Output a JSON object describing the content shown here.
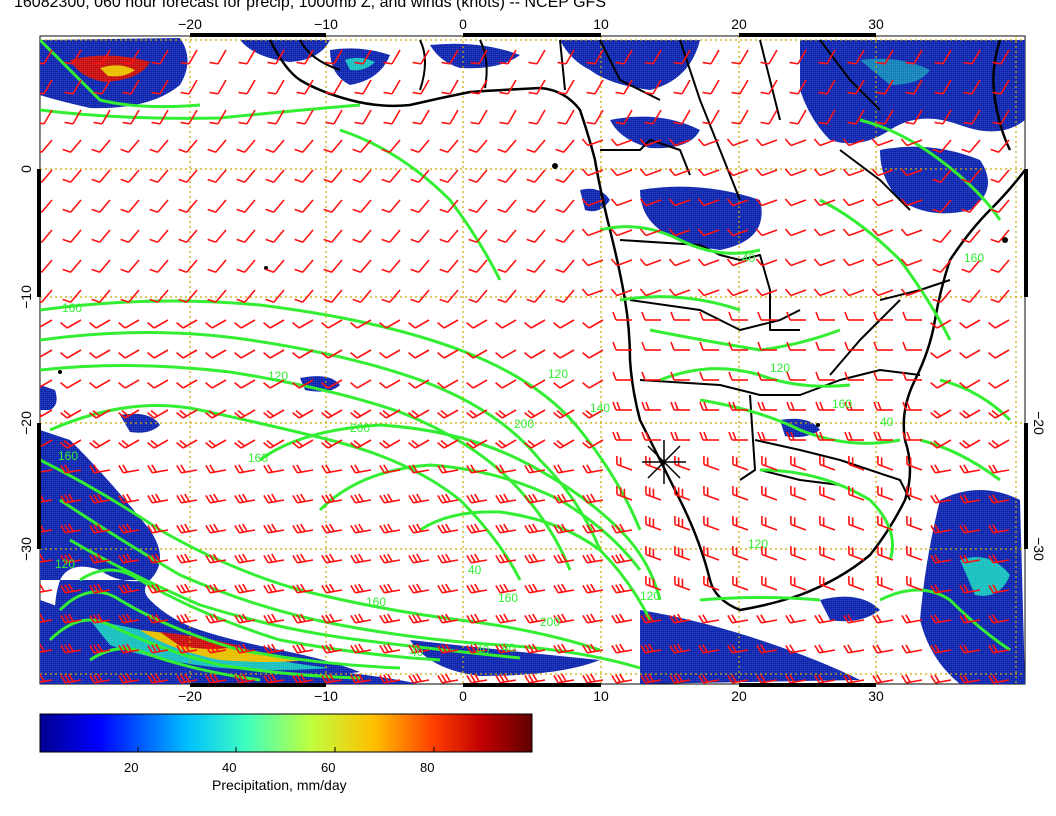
{
  "title": "16082300, 060 hour forecast for precip, 1000mb Z, and winds (knots) -- NCEP GFS",
  "map": {
    "lon_ticks": [
      "−20",
      "−10",
      "0",
      "10",
      "20",
      "30"
    ],
    "lat_ticks_left": [
      "0",
      "−10",
      "−20",
      "−30"
    ],
    "lat_ticks_right": [
      "−20",
      "−30"
    ],
    "contour_labels": [
      "160",
      "120",
      "160",
      "200",
      "120",
      "160",
      "140",
      "120",
      "200",
      "160",
      "40",
      "120",
      "160",
      "200",
      "40",
      "40",
      "40",
      "120",
      "160",
      "40",
      "40",
      "120",
      "160"
    ],
    "colors": {
      "coast": "#000000",
      "contour": "#33ee33",
      "wind_barb": "#ff1111",
      "grid": "#ccaa00",
      "precip_low": "#000080",
      "precip_mid": "#18c0c0",
      "precip_high": "#c80000"
    },
    "wind_barb_icon": "wind-barb-icon",
    "marker_icon": "cross-marker-icon"
  },
  "colorbar": {
    "labels": [
      "20",
      "40",
      "60",
      "80"
    ],
    "title": "Precipitation, mm/day",
    "range": [
      0,
      100
    ],
    "colors": [
      "#00008f",
      "#0000ff",
      "#00bfff",
      "#3fffbf",
      "#bfff3f",
      "#ffbf00",
      "#ff3f00",
      "#c00000",
      "#600000"
    ]
  }
}
